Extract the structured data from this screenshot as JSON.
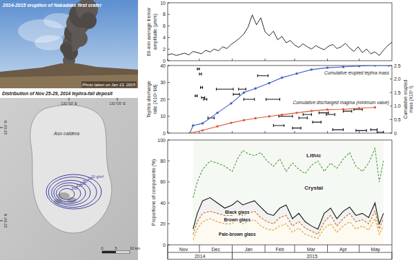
{
  "photo": {
    "title": "2014-2015 eruption of Nakadake first crater",
    "caption": "Photo taken on Jan 13, 2015"
  },
  "map": {
    "title": "Distribution of Nov 25-29, 2014 tephra-fall deposit",
    "place": "Aso caldera",
    "lon_labels": [
      "131°00' E",
      "131°05' E"
    ],
    "lat_labels": [
      "33°00' N",
      "32°50' N"
    ],
    "contours": {
      "values": [
        10,
        20,
        50,
        100,
        200,
        500
      ],
      "value_labels": [
        "10 g/m²",
        "20",
        "50",
        "100",
        "200",
        "500"
      ],
      "color": "#3a3aa0"
    },
    "scale_labels": [
      "0",
      "5",
      "10 km"
    ]
  },
  "chart_data": [
    {
      "type": "line",
      "y_label": "60-min average tremor amplitude (μm/s)",
      "color": "#111111",
      "grid": false,
      "tick_labels": "y",
      "x": [
        0,
        4,
        8,
        12,
        16,
        20,
        24,
        28,
        32,
        36,
        40,
        44,
        48,
        52,
        56,
        60,
        64,
        68,
        72,
        76,
        80,
        84,
        88,
        92,
        96,
        100,
        104,
        108,
        112,
        116,
        120,
        124,
        128,
        132,
        136,
        140,
        144,
        148,
        152,
        156,
        160,
        164,
        168,
        172,
        176,
        180,
        184,
        188,
        192,
        196,
        200,
        204,
        208,
        212
      ],
      "values": [
        1.0,
        1.2,
        0.9,
        1.1,
        1.3,
        1.0,
        1.6,
        1.4,
        1.2,
        1.8,
        1.5,
        2.0,
        1.7,
        2.4,
        2.1,
        2.8,
        3.3,
        3.9,
        4.6,
        5.8,
        7.9,
        6.2,
        7.4,
        5.0,
        4.3,
        5.1,
        3.6,
        4.2,
        3.1,
        3.5,
        2.7,
        2.3,
        2.9,
        2.4,
        2.0,
        2.6,
        2.2,
        1.9,
        2.5,
        2.8,
        2.1,
        2.4,
        3.0,
        2.2,
        1.6,
        2.4,
        1.4,
        2.0,
        1.2,
        1.5,
        0.9,
        1.8,
        2.6,
        3.2
      ],
      "xlim": [
        0,
        212
      ],
      "xticks": [
        0,
        30,
        61,
        92,
        120,
        151,
        181
      ],
      "ylim": [
        0,
        10
      ],
      "yticks": [
        0,
        2,
        4,
        6,
        8,
        10
      ]
    },
    {
      "type": "line",
      "y_label": "Tephra discharge rate (X10³ t/d)",
      "y2_label": "Cumulative erupted mass (X10⁶ t)",
      "grid": false,
      "tick_labels": "y",
      "xlim": [
        0,
        212
      ],
      "xticks": [
        0,
        30,
        61,
        92,
        120,
        151,
        181
      ],
      "ylim": [
        0,
        40
      ],
      "yticks": [
        0,
        10,
        20,
        30,
        40
      ],
      "y2lim": [
        0,
        2.5
      ],
      "y2ticks": [
        0,
        0.5,
        {
          "value": 1,
          "label": "1.0"
        },
        1.5,
        {
          "value": 2,
          "label": "2.0"
        },
        2.5
      ],
      "series": [
        {
          "type": "interval",
          "color": "#111111",
          "x_start": [
            26,
            28,
            30,
            31,
            32,
            34,
            38,
            46,
            62,
            67,
            72,
            85,
            93,
            100,
            105,
            118,
            124,
            128,
            137,
            143,
            150,
            156,
            166,
            176,
            178,
            192,
            198
          ],
          "x_end": [
            28,
            30,
            32,
            33,
            35,
            37,
            44,
            62,
            68,
            74,
            82,
            95,
            106,
            110,
            118,
            126,
            132,
            136,
            145,
            152,
            158,
            166,
            174,
            184,
            188,
            198,
            204
          ],
          "values": [
            22,
            38,
            35,
            27,
            21,
            20,
            9,
            26,
            23,
            26,
            20,
            34,
            20,
            4.5,
            10,
            3,
            9,
            11,
            6.5,
            12,
            11,
            2,
            13,
            14,
            1.5,
            2,
            0.5
          ]
        },
        {
          "type": "line",
          "name": "Cumulative erupted tephra mass",
          "axis": "y2",
          "color": "#3b5fc0",
          "marker": "circle",
          "x": [
            21,
            24,
            33,
            47,
            60,
            72,
            83,
            96,
            108,
            122,
            136,
            151,
            166,
            181,
            196,
            209
          ],
          "values": [
            0,
            0.28,
            0.36,
            0.75,
            1.1,
            1.5,
            1.65,
            1.85,
            2.05,
            2.2,
            2.35,
            2.42,
            2.45,
            2.48,
            2.5,
            2.5
          ]
        },
        {
          "type": "line",
          "name": "Cumulative discharged magma (minimum value)",
          "axis": "y2",
          "color": "#e0533a",
          "marker": "circle",
          "x": [
            21,
            33,
            47,
            60,
            72,
            83,
            96,
            108,
            122,
            136,
            151,
            166,
            181,
            196
          ],
          "values": [
            0,
            0.1,
            0.25,
            0.38,
            0.48,
            0.55,
            0.62,
            0.68,
            0.75,
            0.82,
            0.87,
            0.88,
            0.92,
            0.95
          ]
        }
      ]
    },
    {
      "type": "area",
      "stacked": true,
      "y_label": "Proportions of components (%)",
      "grid": false,
      "x": [
        24,
        28,
        33,
        40,
        47,
        54,
        61,
        66,
        71,
        76,
        82,
        88,
        94,
        100,
        106,
        112,
        118,
        124,
        130,
        136,
        142,
        148,
        154,
        160,
        166,
        172,
        178,
        184,
        190,
        196,
        200,
        204
      ],
      "xlim": [
        0,
        212
      ],
      "xticks": [
        {
          "value": 0,
          "label": "Nov"
        },
        {
          "value": 30,
          "label": "Dec"
        },
        {
          "value": 61,
          "label": "Jan"
        },
        {
          "value": 92,
          "label": "Feb"
        },
        {
          "value": 120,
          "label": "Mar"
        },
        {
          "value": 151,
          "label": "Apr"
        },
        {
          "value": 181,
          "label": "May"
        }
      ],
      "ylim": [
        0,
        100
      ],
      "yticks": [
        0,
        20,
        40,
        60,
        80,
        100
      ],
      "year_labels": [
        {
          "label": "2014",
          "from": 0,
          "to": 61
        },
        {
          "label": "2015",
          "from": 61,
          "to": 212
        }
      ],
      "series": [
        {
          "name": "Pale-brown glass",
          "color": "#d9a520",
          "line_style": "dashed",
          "values": [
            5,
            15,
            22,
            25,
            22,
            20,
            20,
            25,
            20,
            22,
            24,
            18,
            15,
            14,
            18,
            20,
            12,
            16,
            10,
            8,
            6,
            16,
            20,
            12,
            18,
            22,
            15,
            18,
            14,
            25,
            10,
            18
          ]
        },
        {
          "name": "Brown glass",
          "color": "#c8701e",
          "line_style": "dashed",
          "values": [
            5,
            7,
            8,
            7,
            8,
            8,
            8,
            7,
            8,
            8,
            8,
            8,
            7,
            6,
            8,
            8,
            6,
            6,
            6,
            5,
            4,
            6,
            8,
            6,
            7,
            8,
            7,
            6,
            6,
            7,
            5,
            7
          ]
        },
        {
          "name": "Black glass",
          "color": "#111111",
          "line_style": "solid",
          "values": [
            5,
            8,
            12,
            13,
            10,
            7,
            10,
            10,
            10,
            10,
            10,
            10,
            8,
            8,
            9,
            10,
            7,
            8,
            6,
            5,
            5,
            8,
            7,
            7,
            7,
            6,
            6,
            6,
            6,
            8,
            5,
            5
          ]
        },
        {
          "name": "Crystal",
          "color": "#4a9a3a",
          "line_style": "dashed",
          "values": [
            30,
            30,
            30,
            35,
            38,
            40,
            32,
            40,
            52,
            47,
            43,
            52,
            50,
            47,
            47,
            32,
            53,
            42,
            46,
            58,
            65,
            40,
            43,
            48,
            50,
            52,
            47,
            40,
            52,
            52,
            40,
            50
          ]
        },
        {
          "name": "Lithic",
          "color": "#6a9a3a",
          "line_style": "none",
          "values": [
            55,
            40,
            28,
            20,
            22,
            25,
            30,
            18,
            10,
            13,
            15,
            12,
            20,
            25,
            18,
            30,
            22,
            28,
            32,
            24,
            20,
            30,
            22,
            27,
            18,
            12,
            25,
            30,
            22,
            8,
            40,
            20
          ]
        }
      ]
    }
  ]
}
